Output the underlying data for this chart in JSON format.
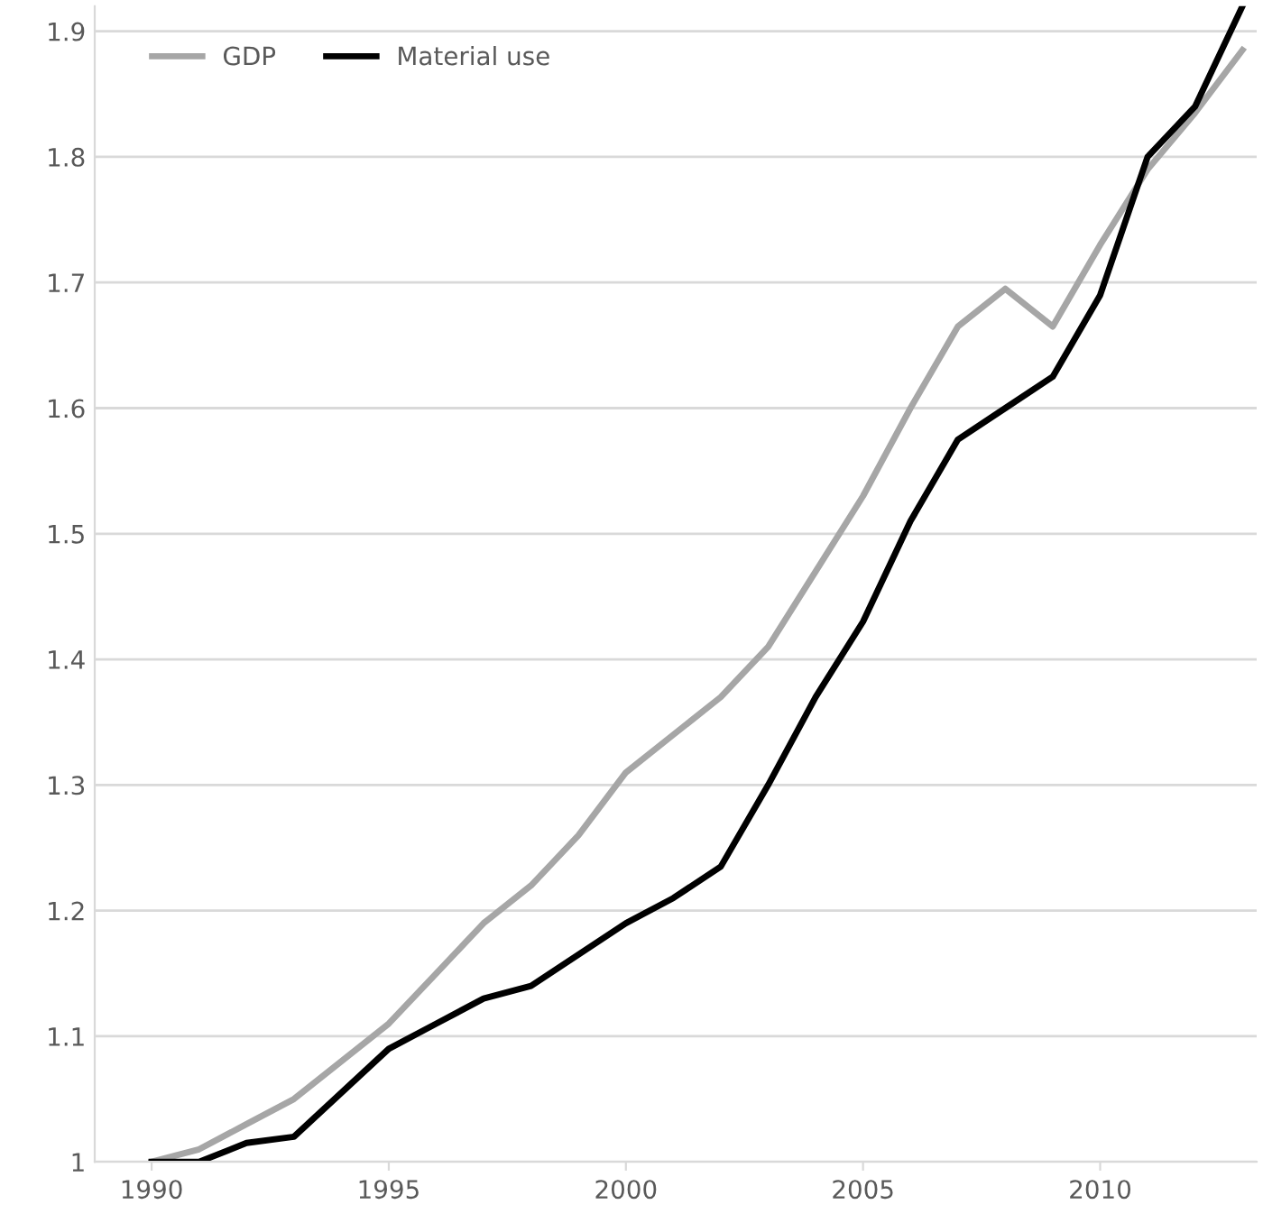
{
  "chart_data": {
    "type": "line",
    "x": [
      1990,
      1991,
      1992,
      1993,
      1994,
      1995,
      1996,
      1997,
      1998,
      1999,
      2000,
      2001,
      2002,
      2003,
      2004,
      2005,
      2006,
      2007,
      2008,
      2009,
      2010,
      2011,
      2012,
      2013
    ],
    "series": [
      {
        "name": "GDP",
        "color": "#a6a6a6",
        "values": [
          1.0,
          1.01,
          1.03,
          1.05,
          1.08,
          1.11,
          1.15,
          1.19,
          1.22,
          1.26,
          1.31,
          1.34,
          1.37,
          1.41,
          1.47,
          1.53,
          1.6,
          1.665,
          1.695,
          1.665,
          1.73,
          1.79,
          1.835,
          1.885
        ]
      },
      {
        "name": "Material use",
        "color": "#000000",
        "values": [
          1.0,
          1.0,
          1.015,
          1.02,
          1.055,
          1.09,
          1.11,
          1.13,
          1.14,
          1.165,
          1.19,
          1.21,
          1.235,
          1.3,
          1.37,
          1.43,
          1.51,
          1.575,
          1.6,
          1.625,
          1.69,
          1.8,
          1.84,
          1.92
        ]
      }
    ],
    "xlim": [
      1988.8,
      2013.3
    ],
    "ylim": [
      1.0,
      1.92
    ],
    "xticks": [
      1990,
      1995,
      2000,
      2005,
      2010
    ],
    "yticks": [
      1,
      1.1,
      1.2,
      1.3,
      1.4,
      1.5,
      1.6,
      1.7,
      1.8,
      1.9
    ],
    "grid": "y",
    "legend": "top left",
    "marker": "none",
    "line_style": "solid"
  }
}
